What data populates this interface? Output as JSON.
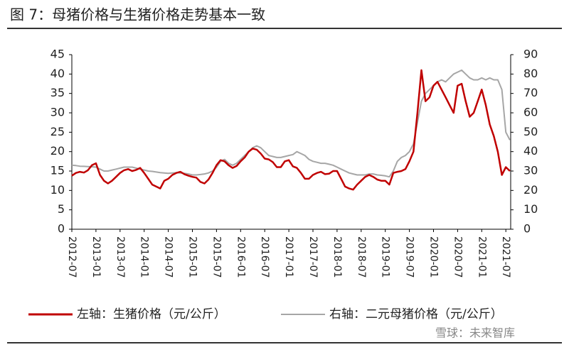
{
  "chart_data": {
    "type": "line",
    "title": "图 7：母猪价格与生猪价格走势基本一致",
    "watermark": "雪球：未来智库",
    "x": [
      "2012-07",
      "2012-08",
      "2012-09",
      "2012-10",
      "2012-11",
      "2012-12",
      "2013-01",
      "2013-02",
      "2013-03",
      "2013-04",
      "2013-05",
      "2013-06",
      "2013-07",
      "2013-08",
      "2013-09",
      "2013-10",
      "2013-11",
      "2013-12",
      "2014-01",
      "2014-02",
      "2014-03",
      "2014-04",
      "2014-05",
      "2014-06",
      "2014-07",
      "2014-08",
      "2014-09",
      "2014-10",
      "2014-11",
      "2014-12",
      "2015-01",
      "2015-02",
      "2015-03",
      "2015-04",
      "2015-05",
      "2015-06",
      "2015-07",
      "2015-08",
      "2015-09",
      "2015-10",
      "2015-11",
      "2015-12",
      "2016-01",
      "2016-02",
      "2016-03",
      "2016-04",
      "2016-05",
      "2016-06",
      "2016-07",
      "2016-08",
      "2016-09",
      "2016-10",
      "2016-11",
      "2016-12",
      "2017-01",
      "2017-02",
      "2017-03",
      "2017-04",
      "2017-05",
      "2017-06",
      "2017-07",
      "2017-08",
      "2017-09",
      "2017-10",
      "2017-11",
      "2017-12",
      "2018-01",
      "2018-02",
      "2018-03",
      "2018-04",
      "2018-05",
      "2018-06",
      "2018-07",
      "2018-08",
      "2018-09",
      "2018-10",
      "2018-11",
      "2018-12",
      "2019-01",
      "2019-02",
      "2019-03",
      "2019-04",
      "2019-05",
      "2019-06",
      "2019-07",
      "2019-08",
      "2019-09",
      "2019-10",
      "2019-11",
      "2019-12",
      "2020-01",
      "2020-02",
      "2020-03",
      "2020-04",
      "2020-05",
      "2020-06",
      "2020-07",
      "2020-08",
      "2020-09",
      "2020-10",
      "2020-11",
      "2020-12",
      "2021-01",
      "2021-02",
      "2021-03",
      "2021-04",
      "2021-05",
      "2021-06",
      "2021-07",
      "2021-08"
    ],
    "series": [
      {
        "name": "左轴：生猪价格（元/公斤）",
        "color": "#c00000",
        "axis": "y",
        "values": [
          13.8,
          14.5,
          14.8,
          14.6,
          15.2,
          16.5,
          17,
          14,
          12.5,
          11.8,
          12.5,
          13.5,
          14.5,
          15.2,
          15.5,
          15,
          15.3,
          15.8,
          14.5,
          13,
          11.5,
          11,
          10.5,
          12.5,
          13,
          14,
          14.5,
          14.8,
          14.2,
          13.8,
          13.5,
          13.3,
          12.2,
          11.8,
          12.8,
          14.5,
          16.5,
          17.8,
          17.5,
          16.5,
          15.8,
          16.3,
          17.5,
          18.5,
          20,
          20.8,
          20.5,
          19.5,
          18.2,
          18,
          17.3,
          16,
          16,
          17.5,
          17.8,
          16.2,
          15.8,
          14.5,
          13,
          13,
          14,
          14.5,
          14.8,
          14.2,
          14.3,
          15,
          15,
          13,
          11,
          10.5,
          10.2,
          11.5,
          12.5,
          13.5,
          14,
          13.5,
          12.8,
          12.5,
          12.5,
          11.5,
          14.5,
          14.8,
          15,
          15.5,
          17.5,
          20,
          30,
          41,
          33,
          34,
          37,
          38,
          36,
          34,
          32,
          30,
          37,
          37.5,
          33,
          29,
          30,
          33,
          36,
          32,
          27,
          24,
          20,
          14,
          16,
          15
        ]
      },
      {
        "name": "右轴：二元母猪价格（元/公斤）",
        "color": "#a6a6a6",
        "axis": "y2",
        "values": [
          33,
          32.8,
          32.5,
          32.4,
          32.3,
          32.2,
          32,
          31,
          30,
          30,
          30.5,
          31,
          31.5,
          32,
          32,
          32,
          31.5,
          31,
          30.5,
          30,
          29.8,
          29.5,
          29.2,
          29,
          28.8,
          29,
          29.2,
          29,
          28.8,
          28.5,
          28,
          28,
          28.2,
          28.5,
          29,
          30,
          32,
          35,
          36,
          34,
          33,
          34,
          36,
          38,
          40,
          42,
          43,
          42,
          40,
          38,
          37.5,
          37,
          37,
          37.5,
          38,
          38.5,
          40,
          39,
          38,
          36,
          35,
          34.5,
          34,
          34,
          33.5,
          33,
          32,
          31,
          30,
          29,
          28.5,
          28,
          28,
          28,
          28.5,
          28.5,
          28,
          27.8,
          27.5,
          27,
          30,
          35,
          37,
          38,
          40,
          44,
          55,
          66,
          70,
          72,
          74,
          76,
          77,
          76,
          78,
          80,
          81,
          82,
          80,
          78,
          77,
          77,
          78,
          77,
          78,
          77,
          77,
          72,
          50,
          46
        ]
      }
    ],
    "xticks": [
      "2012-07",
      "2013-01",
      "2013-07",
      "2014-01",
      "2014-07",
      "2015-01",
      "2015-07",
      "2016-01",
      "2016-07",
      "2017-01",
      "2017-07",
      "2018-01",
      "2018-07",
      "2019-01",
      "2019-07",
      "2020-01",
      "2020-07",
      "2021-01",
      "2021-07"
    ],
    "ylim": [
      0,
      45
    ],
    "yticks": [
      0,
      5,
      10,
      15,
      20,
      25,
      30,
      35,
      40,
      45
    ],
    "y2lim": [
      0,
      90
    ],
    "y2ticks": [
      0,
      10,
      20,
      30,
      40,
      50,
      60,
      70,
      80,
      90
    ],
    "grid": false
  }
}
